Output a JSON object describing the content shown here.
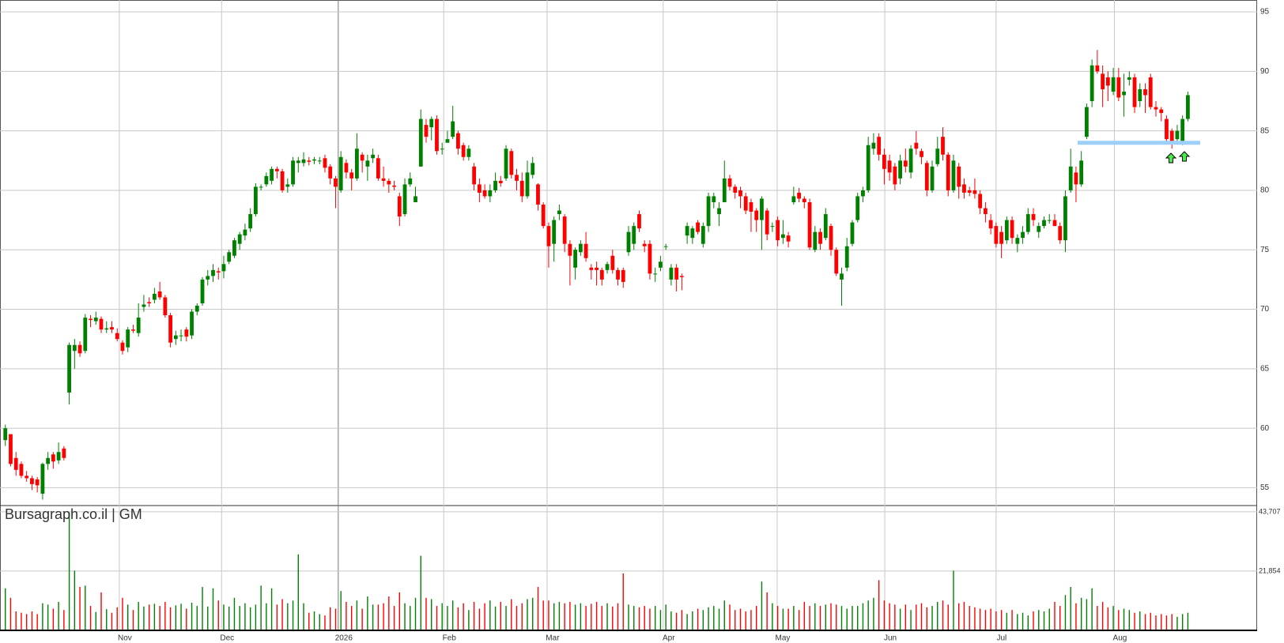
{
  "chart_data": {
    "type": "candlestick",
    "title": "Bursagraph.co.il | GM",
    "open": [
      59.0,
      59.5,
      57.5,
      57,
      56,
      55.8,
      55.7,
      54.5,
      57,
      57.8,
      57.3,
      58.3,
      63,
      66.5,
      67,
      66.5,
      69.2,
      69,
      69.2,
      68.3,
      68.5,
      68,
      67.2,
      66.8,
      68.3,
      68,
      70.2,
      70.6,
      70.8,
      71.5,
      71,
      69.5,
      67.5,
      67.8,
      68.3,
      67.8,
      69.8,
      70.5,
      72.5,
      72.8,
      73.2,
      73.2,
      74,
      74.5,
      75.5,
      76.2,
      76.8,
      78,
      80.3,
      80.5,
      80.8,
      81.8,
      81.6,
      80.3,
      80.5,
      82.3,
      82.3,
      82.5,
      82.5,
      82.5,
      82.7,
      82,
      81,
      80,
      82.3,
      81.5,
      81,
      83,
      82,
      82.7,
      82.7,
      81,
      80.8,
      80.4,
      79.5,
      78,
      80.5,
      79,
      82,
      85.5,
      85.3,
      86,
      83.5,
      84,
      84.5,
      84.8,
      83.8,
      82.8,
      82,
      80.5,
      80,
      79.5,
      80,
      80.8,
      81,
      83.3,
      81.3,
      80.8,
      79.5,
      81.3,
      80.5,
      78.8,
      77,
      75.5,
      78,
      77.8,
      75.5,
      73.5,
      74.8,
      75.5,
      73.5,
      73.5,
      73.3,
      73.3,
      74.5,
      73.3,
      73.3,
      74.8,
      75.5,
      78,
      75.5,
      75.5,
      73,
      73.5,
      75.3,
      72.5,
      73.5,
      72.8,
      76.2,
      76,
      77.3,
      75.5,
      77,
      79,
      78,
      79,
      81,
      80.3,
      80,
      79.5,
      79,
      78.3,
      77.5,
      78.3,
      77,
      77.5,
      76,
      76.2,
      79,
      79.8,
      79.3,
      79,
      75,
      76.5,
      76,
      77,
      75,
      72.5,
      73.5,
      75.5,
      77.5,
      79.5,
      80,
      83.5,
      84.5,
      83,
      82.5,
      82,
      81,
      82.5,
      81.5,
      84,
      83.3,
      82.3,
      80,
      82.2,
      84.5,
      83,
      80,
      82,
      80.5,
      80,
      80,
      79.7,
      78.5,
      77.5,
      77,
      76.5,
      75.8,
      77.5,
      75.5,
      76,
      76.5,
      78,
      76.5,
      77,
      77.5,
      77.5,
      77,
      75.8,
      80,
      81.5,
      80.5,
      84.5,
      87.5,
      90.5,
      89.8,
      89.5,
      88.3,
      89.5,
      88,
      89.3,
      89.5,
      87.5,
      88.5,
      89.5,
      87,
      86.8,
      86,
      85,
      84.3,
      84,
      86
    ],
    "high": [
      60.3,
      59.5,
      58,
      57.2,
      56.4,
      56,
      55.9,
      57.1,
      58,
      58,
      58.8,
      58.5,
      67.2,
      67.5,
      67.3,
      69.6,
      69.5,
      69.8,
      69.4,
      69,
      69,
      68.4,
      67.4,
      68.5,
      68.7,
      70.5,
      71.2,
      71,
      71.8,
      72.3,
      71.2,
      69.7,
      68.2,
      68.3,
      68.5,
      70,
      70.5,
      72.7,
      73.3,
      73.8,
      73.5,
      74.5,
      75,
      76,
      76.5,
      77.2,
      78.5,
      80.6,
      80.5,
      81.5,
      82,
      82,
      81.8,
      81,
      82.8,
      82.8,
      83.2,
      82.8,
      82.8,
      82.8,
      83,
      82.2,
      81.2,
      83.3,
      82.6,
      81.8,
      84.8,
      83.2,
      83,
      83.5,
      83,
      82,
      81,
      80.8,
      79.8,
      81,
      81.5,
      80.3,
      86.8,
      86,
      86.2,
      86.3,
      84,
      85,
      87.1,
      85,
      84,
      83.8,
      82.3,
      81,
      80.5,
      80.5,
      81.5,
      81.2,
      83.8,
      83.5,
      81.8,
      81.5,
      82.5,
      82.8,
      80.6,
      79,
      77.3,
      77.8,
      78.8,
      78,
      75.8,
      75.2,
      75.8,
      76.5,
      73.8,
      74,
      73.5,
      74,
      75,
      73.5,
      73.5,
      77,
      77.3,
      78.3,
      75.8,
      75.8,
      73.5,
      74.5,
      75.5,
      73.8,
      73.8,
      73,
      77.3,
      77,
      77.5,
      77.3,
      79.8,
      79.8,
      79,
      82.5,
      81.3,
      80.5,
      80.3,
      79.8,
      79.3,
      78.5,
      79.5,
      78.5,
      77.3,
      77.8,
      77.5,
      76.5,
      80.3,
      80.2,
      79.5,
      79.3,
      77,
      76.8,
      78.5,
      77.2,
      75.2,
      73.5,
      76,
      77.5,
      79.8,
      80.3,
      84.5,
      84.8,
      84.8,
      83.5,
      83,
      82.3,
      83,
      83.5,
      83.8,
      85,
      83.5,
      82.5,
      82.5,
      84.5,
      85.3,
      83.2,
      83,
      82.3,
      81,
      80.3,
      81,
      80,
      79,
      78,
      77.3,
      77,
      77.8,
      77.8,
      76.3,
      77,
      78.5,
      78.5,
      77.3,
      77.8,
      78,
      78,
      77.3,
      80,
      83.5,
      82,
      83.3,
      87.3,
      91,
      91.8,
      90.5,
      90,
      90.3,
      90.3,
      89.8,
      90,
      89.8,
      89,
      89,
      89.8,
      87.5,
      87,
      86.3,
      85.2,
      85.5,
      86.3,
      88.3
    ],
    "low": [
      58.5,
      56.8,
      56,
      55.8,
      55.5,
      54.8,
      54.6,
      54,
      56.5,
      56.6,
      57,
      57.3,
      62,
      65,
      66,
      66.3,
      68.5,
      68.7,
      68,
      68,
      68,
      67.3,
      66.2,
      66.4,
      68,
      67.7,
      69.8,
      70.2,
      70.5,
      70.8,
      69.3,
      66.8,
      67,
      67.3,
      67.3,
      67.5,
      69.5,
      70.3,
      72,
      72.3,
      72.5,
      72.6,
      73.8,
      74.3,
      75,
      75.8,
      76.5,
      77.8,
      80,
      80.3,
      80.5,
      81,
      79.8,
      79.8,
      80.3,
      81.5,
      82,
      82.1,
      82.2,
      82.2,
      81.5,
      80.5,
      78.5,
      79.8,
      81,
      80,
      80.8,
      81.5,
      80.8,
      82.3,
      80.8,
      80.3,
      79.8,
      80,
      77,
      77.8,
      80.3,
      79,
      82,
      84,
      84.2,
      83,
      83,
      84,
      84.3,
      83,
      82.5,
      82.5,
      80,
      79,
      79.3,
      79,
      79.8,
      80.3,
      80.8,
      81,
      80,
      79,
      79.3,
      81,
      78.3,
      76.8,
      73.5,
      74,
      77.5,
      74.8,
      72,
      72.5,
      74.5,
      74,
      72.5,
      72,
      72,
      73,
      73,
      72,
      71.8,
      74.5,
      75,
      76.5,
      74.8,
      72.5,
      72.3,
      73.2,
      75,
      72,
      71.5,
      71.6,
      75.5,
      75.5,
      76.3,
      75.2,
      76.5,
      78.5,
      77,
      79,
      80,
      79.3,
      78.5,
      78,
      76.5,
      76.5,
      75,
      75.8,
      76.5,
      75.3,
      75.5,
      75.2,
      78.8,
      79,
      78.5,
      75,
      74.8,
      75,
      75.8,
      74.5,
      72.8,
      70.3,
      73.2,
      75.3,
      77.3,
      79,
      79.8,
      83,
      82.5,
      80.5,
      80.8,
      80,
      80.5,
      81.5,
      81,
      83,
      82.2,
      79.5,
      79.8,
      82,
      82.5,
      79.5,
      79.8,
      79.3,
      79.3,
      79.5,
      79.3,
      78,
      77.3,
      76.3,
      75.2,
      74.3,
      75.5,
      75.5,
      74.8,
      75.5,
      76.3,
      77,
      76,
      76.8,
      77.2,
      77,
      75.5,
      74.8,
      79.8,
      79,
      80.3,
      84.3,
      87,
      89.8,
      87,
      87.5,
      88,
      87.5,
      86.2,
      88.8,
      86.5,
      87,
      86.5,
      86.8,
      86.2,
      85.8,
      84,
      83.5,
      84,
      83.8,
      85.8
    ],
    "close": [
      60,
      57,
      56.5,
      56,
      55.8,
      55.3,
      55.2,
      57,
      57.5,
      57.2,
      58,
      57.5,
      67,
      67,
      66.3,
      69.3,
      69.1,
      69.3,
      68.3,
      68.4,
      68.3,
      67.5,
      66.5,
      68.3,
      68.2,
      69.3,
      70.4,
      70.5,
      71.3,
      71,
      69.5,
      67.2,
      67.8,
      67.8,
      67.7,
      69.8,
      70.3,
      72.5,
      72.8,
      73.3,
      73.1,
      73.8,
      74.8,
      75.8,
      76.3,
      76.7,
      78,
      80.3,
      80.3,
      81.2,
      81.8,
      81.6,
      80,
      80.5,
      82.5,
      82.5,
      82.6,
      82.4,
      82.6,
      82.5,
      81.9,
      81,
      80.3,
      82.8,
      81.5,
      81,
      83.5,
      82.5,
      82.5,
      83,
      81,
      80.8,
      80.5,
      80.3,
      77.8,
      80.5,
      81,
      79.5,
      86,
      84.5,
      86,
      83.3,
      83.5,
      84.3,
      85.8,
      83.5,
      82.8,
      83.5,
      80.5,
      79.8,
      79.5,
      80,
      80.8,
      80.6,
      83.5,
      81.3,
      80.8,
      79.5,
      81.5,
      82.3,
      78.8,
      77,
      75.3,
      77.5,
      78.3,
      75.5,
      74.5,
      75,
      75.5,
      74.3,
      73.3,
      73.3,
      72.5,
      73.8,
      73.3,
      72.5,
      72.3,
      76.5,
      77,
      76.8,
      75.3,
      73,
      73,
      74,
      75.3,
      73.5,
      72.5,
      72.7,
      77,
      76.8,
      76.5,
      77,
      79.5,
      79.5,
      78.5,
      81,
      80.3,
      79.8,
      79.5,
      78.3,
      78.2,
      77.5,
      79.3,
      76.3,
      77,
      75.8,
      76.3,
      75.7,
      79.5,
      79.3,
      79,
      75.2,
      76.5,
      75.5,
      78,
      75,
      73,
      73,
      75.3,
      77.3,
      79.5,
      80,
      83.8,
      84,
      83,
      81.8,
      81.5,
      80.5,
      82.5,
      82,
      83.5,
      83.5,
      82.8,
      80,
      82,
      83.5,
      83,
      80,
      82.5,
      80.3,
      79.8,
      79.8,
      79.7,
      78.5,
      78,
      76.8,
      75.5,
      75.5,
      77.5,
      76,
      76,
      76.5,
      78,
      77.5,
      77,
      77.5,
      77.5,
      77,
      75.8,
      79.5,
      82,
      80.5,
      82.5,
      87,
      90.5,
      90,
      88.5,
      88.8,
      89.5,
      87.8,
      88.3,
      89.5,
      87,
      88.5,
      88,
      87,
      86.8,
      86.5,
      84.3,
      84,
      85,
      86,
      88
    ],
    "volume": [
      15500,
      12000,
      7000,
      6500,
      6000,
      7000,
      6000,
      10000,
      9500,
      8000,
      10500,
      7500,
      43400,
      22000,
      16000,
      16500,
      9000,
      6800,
      14000,
      7800,
      6500,
      8500,
      12000,
      9500,
      7500,
      10500,
      8800,
      9500,
      9800,
      9000,
      10500,
      8500,
      9200,
      9800,
      8000,
      10200,
      9000,
      16000,
      8800,
      15500,
      11000,
      9500,
      8800,
      12000,
      9000,
      10000,
      8500,
      9500,
      16500,
      10000,
      15500,
      9500,
      11500,
      10000,
      11000,
      28000,
      10000,
      6500,
      7000,
      6000,
      5500,
      8500,
      8000,
      14500,
      10500,
      9000,
      11000,
      8000,
      12500,
      9500,
      9500,
      10000,
      12500,
      9000,
      14000,
      10000,
      9000,
      12000,
      27500,
      12000,
      11500,
      9000,
      10000,
      9000,
      11000,
      8500,
      10000,
      7500,
      10500,
      8000,
      10000,
      11000,
      8800,
      10500,
      9000,
      11500,
      9000,
      10000,
      11500,
      12000,
      16000,
      11000,
      11000,
      10000,
      10500,
      10000,
      10500,
      9500,
      10000,
      9000,
      9800,
      10500,
      9000,
      10000,
      8800,
      10000,
      21000,
      9500,
      9000,
      8500,
      9000,
      8000,
      9000,
      7500,
      9500,
      7000,
      6500,
      7500,
      6000,
      7000,
      8000,
      7500,
      8500,
      9000,
      8000,
      11000,
      9500,
      7500,
      8000,
      7000,
      7500,
      9000,
      18000,
      14000,
      10000,
      9000,
      8000,
      8000,
      9000,
      7500,
      10500,
      9000,
      10000,
      9000,
      9500,
      10000,
      9500,
      9000,
      8000,
      9000,
      9000,
      10000,
      11000,
      12000,
      18500,
      11000,
      10000,
      9500,
      8000,
      9500,
      7500,
      9500,
      10000,
      8500,
      9000,
      10500,
      11000,
      9500,
      22000,
      10000,
      10500,
      9000,
      8500,
      8000,
      7500,
      8000,
      7000,
      7500,
      6500,
      7500,
      6000,
      6500,
      5500,
      7000,
      7500,
      7000,
      8000,
      10500,
      9000,
      13000,
      16000,
      10000,
      12000,
      11500,
      15500,
      9000,
      10500,
      8500,
      9000,
      7500,
      8000,
      7500,
      6500,
      7000,
      6000,
      6500,
      5500,
      6000,
      5500,
      6000,
      5000,
      6000,
      6500
    ],
    "up_color": "#008000",
    "down_color": "#ff0000",
    "xlim": [
      -1,
      235
    ],
    "xticks": [
      {
        "value": 21.4,
        "label": "Nov"
      },
      {
        "value": 40.6,
        "label": "Dec"
      },
      {
        "value": 62.5,
        "label": "2026"
      },
      {
        "value": 82.3,
        "label": "Feb"
      },
      {
        "value": 101.7,
        "label": "Mar"
      },
      {
        "value": 123.5,
        "label": "Apr"
      },
      {
        "value": 144.9,
        "label": "May"
      },
      {
        "value": 165.1,
        "label": "Jun"
      },
      {
        "value": 186,
        "label": "Jul"
      },
      {
        "value": 208.2,
        "label": "Aug"
      }
    ],
    "ylim": [
      53.5,
      96
    ],
    "yticks": [
      55,
      60,
      65,
      70,
      75,
      80,
      85,
      90,
      95
    ],
    "vlim": [
      0,
      46000
    ],
    "vticks": [
      {
        "value": 21854,
        "label": "21,854"
      },
      {
        "value": 43707,
        "label": "43,707"
      }
    ],
    "level": {
      "value": 84,
      "color": "#9ccffa"
    },
    "grid": true
  }
}
